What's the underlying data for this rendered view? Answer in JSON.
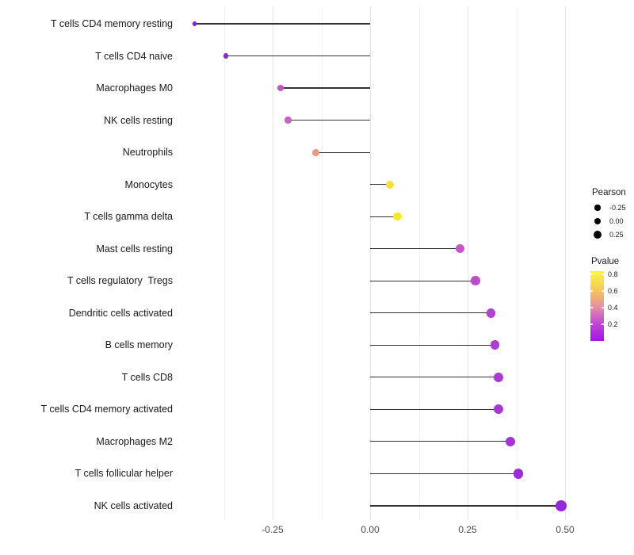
{
  "chart_data": {
    "type": "scatter",
    "style": "horizontal lollipop (segment + point)",
    "title": "",
    "xlabel": "",
    "ylabel": "",
    "xlim": [
      -0.47,
      0.56
    ],
    "grid": "vertical gridlines only, white background",
    "x_tick_labels": [
      "-0.25",
      "0.00",
      "0.25",
      "0.50"
    ],
    "x_tick_values": [
      -0.25,
      0.0,
      0.25,
      0.5
    ],
    "x_minor_gridlines": [
      -0.375,
      -0.125,
      0.125,
      0.375
    ],
    "points": [
      {
        "label": "T cells CD4 memory resting",
        "pearson": -0.45,
        "pvalue_est": 0.1,
        "color": "#8621CE",
        "radius_px": 2.6
      },
      {
        "label": "T cells CD4 naive",
        "pearson": -0.37,
        "pvalue_est": 0.12,
        "color": "#8E26D1",
        "radius_px": 3.4
      },
      {
        "label": "Macrophages M0",
        "pearson": -0.23,
        "pvalue_est": 0.35,
        "color": "#C155C6",
        "radius_px": 4.1
      },
      {
        "label": "NK cells resting",
        "pearson": -0.21,
        "pvalue_est": 0.38,
        "color": "#C763C3",
        "radius_px": 4.2
      },
      {
        "label": "Neutrophils",
        "pearson": -0.14,
        "pvalue_est": 0.55,
        "color": "#E89B80",
        "radius_px": 4.4
      },
      {
        "label": "Monocytes",
        "pearson": 0.05,
        "pvalue_est": 0.78,
        "color": "#F2E336",
        "radius_px": 5.0
      },
      {
        "label": "T cells gamma delta",
        "pearson": 0.07,
        "pvalue_est": 0.8,
        "color": "#F2E82F",
        "radius_px": 5.1
      },
      {
        "label": "Mast cells resting",
        "pearson": 0.23,
        "pvalue_est": 0.34,
        "color": "#C456C7",
        "radius_px": 5.6
      },
      {
        "label": "T cells regulatory  Tregs",
        "pearson": 0.27,
        "pvalue_est": 0.3,
        "color": "#BD4ACA",
        "radius_px": 5.8
      },
      {
        "label": "Dendritic cells activated",
        "pearson": 0.31,
        "pvalue_est": 0.27,
        "color": "#B143CD",
        "radius_px": 5.8
      },
      {
        "label": "B cells memory",
        "pearson": 0.32,
        "pvalue_est": 0.25,
        "color": "#AD3DD0",
        "radius_px": 5.9
      },
      {
        "label": "T cells CD8",
        "pearson": 0.33,
        "pvalue_est": 0.24,
        "color": "#AA3AD1",
        "radius_px": 5.9
      },
      {
        "label": "T cells CD4 memory activated",
        "pearson": 0.33,
        "pvalue_est": 0.23,
        "color": "#A837D3",
        "radius_px": 6.0
      },
      {
        "label": "Macrophages M2",
        "pearson": 0.36,
        "pvalue_est": 0.21,
        "color": "#A334D5",
        "radius_px": 6.1
      },
      {
        "label": "T cells follicular helper",
        "pearson": 0.38,
        "pvalue_est": 0.18,
        "color": "#9D2CD7",
        "radius_px": 6.2
      },
      {
        "label": "NK cells activated",
        "pearson": 0.49,
        "pvalue_est": 0.15,
        "color": "#9528DA",
        "radius_px": 6.8
      }
    ],
    "legend_size": {
      "title": "Pearson",
      "entries": [
        {
          "label": "-0.25",
          "radius_px": 3.6
        },
        {
          "label": "0.00",
          "radius_px": 4.4
        },
        {
          "label": "0.25",
          "radius_px": 5.0
        }
      ]
    },
    "legend_color": {
      "title": "Pvalue",
      "tick_labels": [
        "0.8",
        "0.6",
        "0.4",
        "0.2"
      ],
      "gradient_top_to_bottom": [
        {
          "offset": "0%",
          "color": "#FCF544"
        },
        {
          "offset": "12%",
          "color": "#F8E24B"
        },
        {
          "offset": "25%",
          "color": "#F4CC5C"
        },
        {
          "offset": "38%",
          "color": "#EDAE79"
        },
        {
          "offset": "50%",
          "color": "#E494A0"
        },
        {
          "offset": "62%",
          "color": "#D36EC0"
        },
        {
          "offset": "75%",
          "color": "#C248D3"
        },
        {
          "offset": "88%",
          "color": "#B02BE0"
        },
        {
          "offset": "100%",
          "color": "#A614EC"
        }
      ]
    }
  }
}
